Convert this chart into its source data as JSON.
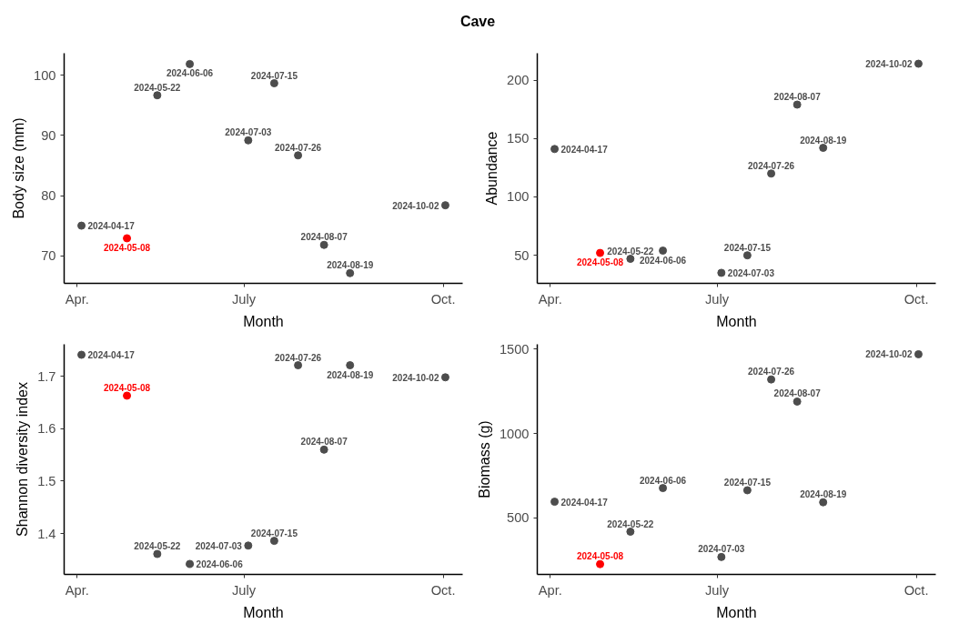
{
  "chart_data": [
    {
      "type": "scatter",
      "title": "Cave",
      "xlabel": "Month",
      "ylabel": "Body size (mm)",
      "grid": false,
      "marker": "circle",
      "xlim": [
        "2024-04-09",
        "2024-10-10"
      ],
      "xticks": [
        {
          "value": "2024-04-15",
          "label": "Apr."
        },
        {
          "value": "2024-07-01",
          "label": "July"
        },
        {
          "value": "2024-10-01",
          "label": "Oct."
        }
      ],
      "ylim": [
        65.4,
        103.7
      ],
      "yticks": [
        70,
        80,
        90,
        100
      ],
      "series": [
        {
          "color": "#4d4d4d",
          "x": [
            "2024-04-17",
            "2024-05-22",
            "2024-06-06",
            "2024-07-03",
            "2024-07-15",
            "2024-07-26",
            "2024-08-07",
            "2024-08-19",
            "2024-10-02"
          ],
          "values": [
            75.0,
            96.7,
            101.9,
            89.2,
            98.7,
            86.7,
            71.8,
            67.1,
            78.4
          ],
          "value_labels": [
            "2024-04-17",
            "2024-05-22",
            "2024-06-06",
            "2024-07-03",
            "2024-07-15",
            "2024-07-26",
            "2024-08-07",
            "2024-08-19",
            "2024-10-02"
          ]
        },
        {
          "color": "#ff0000",
          "x": [
            "2024-05-08"
          ],
          "values": [
            72.9
          ],
          "value_labels": [
            "2024-05-08"
          ]
        }
      ]
    },
    {
      "type": "scatter",
      "xlabel": "Month",
      "ylabel": "Abundance",
      "grid": false,
      "marker": "circle",
      "xlim": [
        "2024-04-09",
        "2024-10-10"
      ],
      "xticks": [
        {
          "value": "2024-04-15",
          "label": "Apr."
        },
        {
          "value": "2024-07-01",
          "label": "July"
        },
        {
          "value": "2024-10-01",
          "label": "Oct."
        }
      ],
      "ylim": [
        26,
        223
      ],
      "yticks": [
        50,
        100,
        150,
        200
      ],
      "series": [
        {
          "color": "#4d4d4d",
          "x": [
            "2024-04-17",
            "2024-05-22",
            "2024-06-06",
            "2024-07-03",
            "2024-07-15",
            "2024-07-26",
            "2024-08-07",
            "2024-08-19",
            "2024-10-02"
          ],
          "values": [
            141,
            47,
            54,
            35,
            50,
            120,
            179,
            142,
            214
          ],
          "value_labels": [
            "2024-04-17",
            "2024-05-22",
            "2024-06-06",
            "2024-07-03",
            "2024-07-15",
            "2024-07-26",
            "2024-08-07",
            "2024-08-19",
            "2024-10-02"
          ]
        },
        {
          "color": "#ff0000",
          "x": [
            "2024-05-08"
          ],
          "values": [
            52
          ],
          "value_labels": [
            "2024-05-08"
          ]
        }
      ]
    },
    {
      "type": "scatter",
      "xlabel": "Month",
      "ylabel": "Shannon diversity index",
      "grid": false,
      "marker": "circle",
      "xlim": [
        "2024-04-09",
        "2024-10-10"
      ],
      "xticks": [
        {
          "value": "2024-04-15",
          "label": "Apr."
        },
        {
          "value": "2024-07-01",
          "label": "July"
        },
        {
          "value": "2024-10-01",
          "label": "Oct."
        }
      ],
      "ylim": [
        1.322,
        1.761
      ],
      "yticks": [
        1.4,
        1.5,
        1.6,
        1.7
      ],
      "series": [
        {
          "color": "#4d4d4d",
          "x": [
            "2024-04-17",
            "2024-05-22",
            "2024-06-06",
            "2024-07-03",
            "2024-07-15",
            "2024-07-26",
            "2024-08-07",
            "2024-08-19",
            "2024-10-02"
          ],
          "values": [
            1.741,
            1.361,
            1.342,
            1.377,
            1.386,
            1.721,
            1.56,
            1.721,
            1.698
          ],
          "value_labels": [
            "2024-04-17",
            "2024-05-22",
            "2024-06-06",
            "2024-07-03",
            "2024-07-15",
            "2024-07-26",
            "2024-08-07",
            "2024-08-19",
            "2024-10-02"
          ]
        },
        {
          "color": "#ff0000",
          "x": [
            "2024-05-08"
          ],
          "values": [
            1.663
          ],
          "value_labels": [
            "2024-05-08"
          ]
        }
      ]
    },
    {
      "type": "scatter",
      "xlabel": "Month",
      "ylabel": "Biomass (g)",
      "grid": false,
      "marker": "circle",
      "xlim": [
        "2024-04-09",
        "2024-10-10"
      ],
      "xticks": [
        {
          "value": "2024-04-15",
          "label": "Apr."
        },
        {
          "value": "2024-07-01",
          "label": "July"
        },
        {
          "value": "2024-10-01",
          "label": "Oct."
        }
      ],
      "ylim": [
        166,
        1528
      ],
      "yticks": [
        500,
        1000,
        1500
      ],
      "series": [
        {
          "color": "#4d4d4d",
          "x": [
            "2024-04-17",
            "2024-05-22",
            "2024-06-06",
            "2024-07-03",
            "2024-07-15",
            "2024-07-26",
            "2024-08-07",
            "2024-08-19",
            "2024-10-02"
          ],
          "values": [
            596,
            419,
            677,
            269,
            664,
            1320,
            1189,
            593,
            1469
          ],
          "value_labels": [
            "2024-04-17",
            "2024-05-22",
            "2024-06-06",
            "2024-07-03",
            "2024-07-15",
            "2024-07-26",
            "2024-08-07",
            "2024-08-19",
            "2024-10-02"
          ]
        },
        {
          "color": "#ff0000",
          "x": [
            "2024-05-08"
          ],
          "values": [
            227
          ],
          "value_labels": [
            "2024-05-08"
          ]
        }
      ]
    }
  ]
}
